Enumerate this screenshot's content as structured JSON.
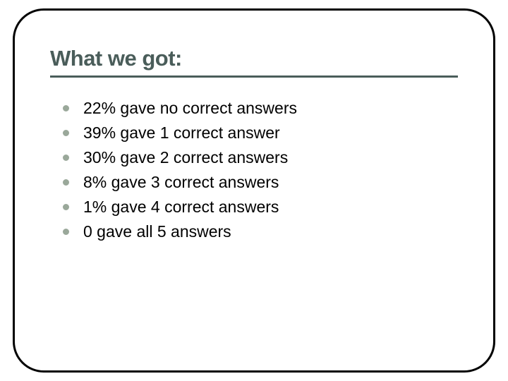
{
  "slide": {
    "title": "What we got:",
    "title_color": "#4a5d5a",
    "title_fontsize": 31,
    "underline_color": "#4a5d5a",
    "bullet_color": "#9aa89a",
    "bullet_fontsize": 23,
    "text_color": "#000000",
    "border_color": "#000000",
    "border_radius": 44,
    "background_color": "#ffffff",
    "items": [
      "22% gave no correct answers",
      "39% gave 1 correct answer",
      "30% gave 2 correct answers",
      "8% gave 3 correct answers",
      "1% gave 4 correct answers",
      "0 gave all 5 answers"
    ]
  }
}
